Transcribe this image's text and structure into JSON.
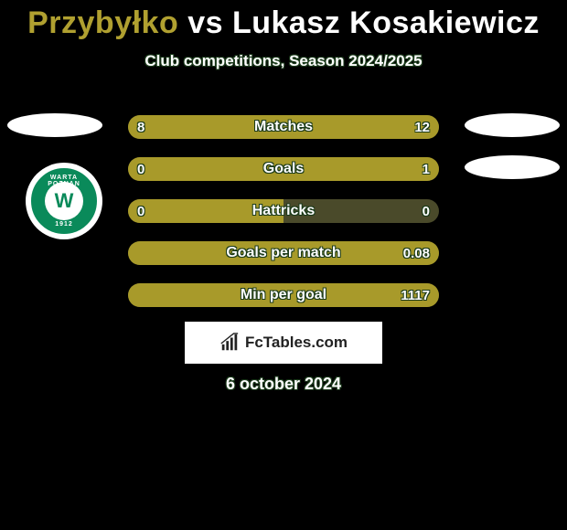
{
  "title": {
    "full": "Przybyłko vs Lukasz Kosakiewicz",
    "color_player1": "#b0a030",
    "color_vs": "#ffffff",
    "color_player2": "#ffffff",
    "fontsize": 34
  },
  "subtitle": "Club competitions, Season 2024/2025",
  "background_color": "#000000",
  "logo": {
    "top_text": "WARTA POZNAN",
    "year": "1912",
    "center_letter": "W",
    "bg_color": "#0a8a5a",
    "text_color": "#ffffff"
  },
  "bars": {
    "track_color": "#4a4a2a",
    "fill_color": "#a89a2a",
    "label_color": "#ffffff",
    "value_color": "#ffffff",
    "border_radius": 13,
    "container_width": 340,
    "rows": [
      {
        "label": "Matches",
        "left_value": "8",
        "right_value": "12",
        "left_pct": 40,
        "right_pct": 60,
        "show_left_ellipse": true,
        "show_right_ellipse": true
      },
      {
        "label": "Goals",
        "left_value": "0",
        "right_value": "1",
        "left_pct": 0,
        "right_pct": 100,
        "show_left_ellipse": false,
        "show_right_ellipse": true
      },
      {
        "label": "Hattricks",
        "left_value": "0",
        "right_value": "0",
        "left_pct": 50,
        "right_pct": 0,
        "show_left_ellipse": false,
        "show_right_ellipse": false
      },
      {
        "label": "Goals per match",
        "left_value": "",
        "right_value": "0.08",
        "left_pct": 0,
        "right_pct": 100,
        "show_left_ellipse": false,
        "show_right_ellipse": false
      },
      {
        "label": "Min per goal",
        "left_value": "",
        "right_value": "1117",
        "left_pct": 0,
        "right_pct": 100,
        "show_left_ellipse": false,
        "show_right_ellipse": false
      }
    ]
  },
  "footer": {
    "brand": "FcTables.com",
    "date": "6 october 2024"
  }
}
